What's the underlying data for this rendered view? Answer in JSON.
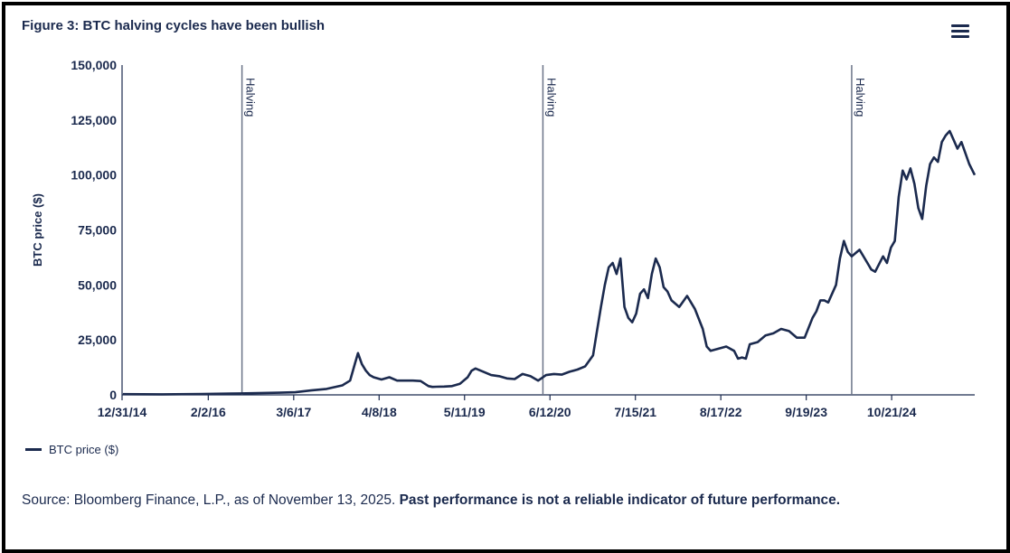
{
  "title": "Figure 3: BTC halving cycles have been bullish",
  "menu_icon": "hamburger-menu-icon",
  "colors": {
    "line": "#1b2a4e",
    "axis": "#1b2a4e",
    "text": "#1b2a4e"
  },
  "chart_data": {
    "type": "line",
    "title": "Figure 3: BTC halving cycles have been bullish",
    "xlabel": "",
    "ylabel": "BTC price ($)",
    "ylim": [
      0,
      150000
    ],
    "yticks": [
      0,
      25000,
      50000,
      75000,
      100000,
      125000,
      150000
    ],
    "ytick_labels": [
      "0",
      "25,000",
      "50,000",
      "75,000",
      "100,000",
      "125,000",
      "150,000"
    ],
    "xlim": [
      2014.99,
      2025.87
    ],
    "xticks": [
      2014.99,
      2016.09,
      2017.18,
      2018.27,
      2019.36,
      2020.45,
      2021.54,
      2022.63,
      2023.72,
      2024.81
    ],
    "xtick_labels": [
      "12/31/14",
      "2/2/16",
      "3/6/17",
      "4/8/18",
      "5/11/19",
      "6/12/20",
      "7/15/21",
      "8/17/22",
      "9/19/23",
      "10/21/24"
    ],
    "grid": false,
    "legend": "bottom-left",
    "annotations": [
      {
        "label": "Halving",
        "x": 2016.52
      },
      {
        "label": "Halving",
        "x": 2020.36
      },
      {
        "label": "Halving",
        "x": 2024.3
      }
    ],
    "series": [
      {
        "name": "BTC price ($)",
        "x": [
          2015.0,
          2015.5,
          2016.0,
          2016.5,
          2017.0,
          2017.2,
          2017.4,
          2017.6,
          2017.8,
          2017.9,
          2017.96,
          2018.0,
          2018.05,
          2018.1,
          2018.15,
          2018.2,
          2018.3,
          2018.4,
          2018.5,
          2018.6,
          2018.7,
          2018.8,
          2018.9,
          2018.95,
          2019.0,
          2019.1,
          2019.2,
          2019.3,
          2019.4,
          2019.45,
          2019.5,
          2019.6,
          2019.7,
          2019.8,
          2019.9,
          2020.0,
          2020.1,
          2020.2,
          2020.3,
          2020.4,
          2020.5,
          2020.6,
          2020.7,
          2020.8,
          2020.9,
          2021.0,
          2021.05,
          2021.1,
          2021.15,
          2021.2,
          2021.25,
          2021.3,
          2021.35,
          2021.4,
          2021.45,
          2021.5,
          2021.55,
          2021.6,
          2021.65,
          2021.7,
          2021.75,
          2021.8,
          2021.85,
          2021.9,
          2021.95,
          2022.0,
          2022.1,
          2022.2,
          2022.3,
          2022.4,
          2022.45,
          2022.5,
          2022.6,
          2022.7,
          2022.8,
          2022.85,
          2022.9,
          2022.95,
          2023.0,
          2023.1,
          2023.2,
          2023.3,
          2023.4,
          2023.5,
          2023.6,
          2023.7,
          2023.8,
          2023.85,
          2023.9,
          2023.95,
          2024.0,
          2024.1,
          2024.15,
          2024.2,
          2024.25,
          2024.3,
          2024.4,
          2024.5,
          2024.55,
          2024.6,
          2024.7,
          2024.75,
          2024.8,
          2024.85,
          2024.9,
          2024.95,
          2025.0,
          2025.05,
          2025.1,
          2025.15,
          2025.2,
          2025.25,
          2025.3,
          2025.35,
          2025.4,
          2025.45,
          2025.5,
          2025.55,
          2025.6,
          2025.65,
          2025.7,
          2025.75,
          2025.8,
          2025.87
        ],
        "y": [
          320,
          250,
          430,
          650,
          1000,
          1200,
          2000,
          2700,
          4300,
          6500,
          14000,
          19000,
          14000,
          11000,
          9000,
          8000,
          7000,
          8000,
          6500,
          6500,
          6500,
          6300,
          4000,
          3600,
          3700,
          3800,
          4000,
          5000,
          8000,
          11000,
          12000,
          10500,
          9000,
          8500,
          7500,
          7200,
          9500,
          8500,
          6500,
          9000,
          9500,
          9200,
          10500,
          11500,
          13000,
          18000,
          29000,
          40000,
          50000,
          58000,
          60000,
          55000,
          62000,
          40000,
          35000,
          33000,
          37000,
          46000,
          48000,
          44000,
          55000,
          62000,
          58000,
          49000,
          47000,
          43000,
          40000,
          45000,
          39000,
          30000,
          22000,
          20000,
          21000,
          22000,
          20000,
          16500,
          17000,
          16500,
          23000,
          24000,
          27000,
          28000,
          30000,
          29000,
          26000,
          26000,
          35000,
          38000,
          43000,
          43000,
          42000,
          50000,
          62000,
          70000,
          65000,
          63000,
          66000,
          60000,
          57000,
          56000,
          63000,
          60000,
          67000,
          70000,
          90000,
          102000,
          98000,
          103000,
          96000,
          85000,
          80000,
          95000,
          105000,
          108000,
          106000,
          115000,
          118000,
          120000,
          116000,
          112000,
          115000,
          110000,
          105000,
          100000
        ]
      }
    ]
  },
  "legend": {
    "label": "BTC price ($)"
  },
  "source": {
    "plain": "Source: Bloomberg Finance, L.P., as of November 13, 2025. ",
    "bold": "Past performance is not a reliable indicator of future performance."
  }
}
